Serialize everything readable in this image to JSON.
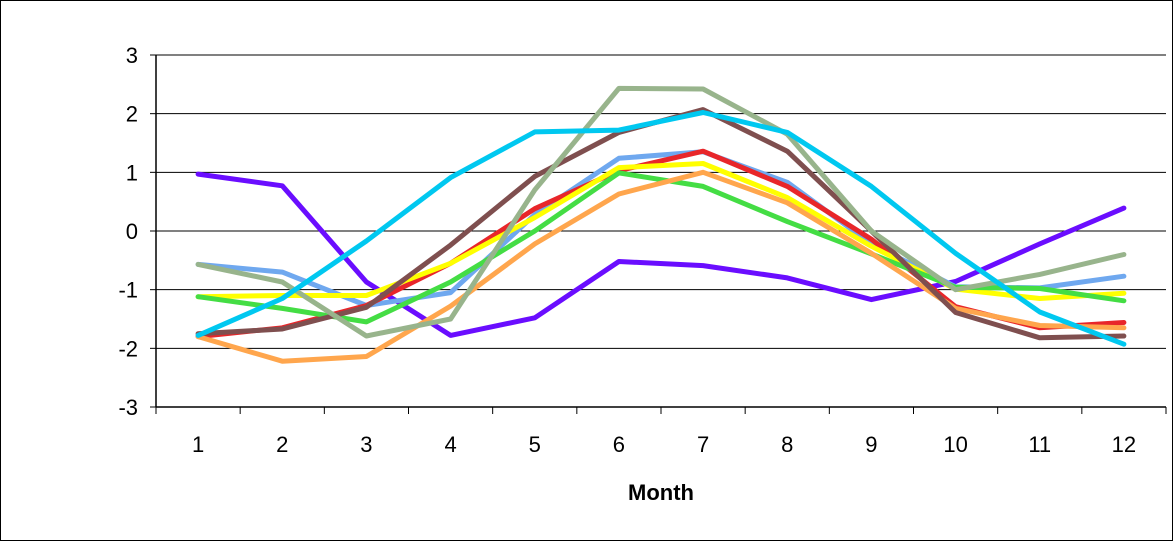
{
  "chart_data": {
    "type": "line",
    "title": "",
    "xlabel": "Month",
    "ylabel": "",
    "x": [
      1,
      2,
      3,
      4,
      5,
      6,
      7,
      8,
      9,
      10,
      11,
      12
    ],
    "x_tick_labels": [
      "1",
      "2",
      "3",
      "4",
      "5",
      "6",
      "7",
      "8",
      "9",
      "10",
      "11",
      "12"
    ],
    "ylim": [
      -3,
      3
    ],
    "y_ticks": [
      3,
      2,
      1,
      0,
      -1,
      -2,
      -3
    ],
    "y_tick_labels": [
      "3",
      "2",
      "1",
      "0",
      "-1",
      "-2",
      "-3"
    ],
    "grid": "horizontal major gridlines",
    "legend": "none",
    "series": [
      {
        "color": "#6a0dff",
        "values": [
          0.97,
          0.77,
          -0.87,
          -1.78,
          -1.48,
          -0.52,
          -0.59,
          -0.8,
          -1.17,
          -0.86,
          -0.22,
          0.39
        ]
      },
      {
        "color": "#6fa8ef",
        "values": [
          -0.57,
          -0.7,
          -1.27,
          -1.05,
          0.28,
          1.24,
          1.35,
          0.83,
          -0.22,
          -0.95,
          -0.97,
          -0.77
        ]
      },
      {
        "color": "#e8262a",
        "values": [
          -1.8,
          -1.65,
          -1.27,
          -0.55,
          0.38,
          1.03,
          1.36,
          0.76,
          -0.14,
          -1.29,
          -1.65,
          -1.56
        ]
      },
      {
        "color": "#ffff00",
        "values": [
          -1.12,
          -1.1,
          -1.1,
          -0.55,
          0.23,
          1.08,
          1.15,
          0.57,
          -0.26,
          -0.99,
          -1.15,
          -1.06
        ]
      },
      {
        "color": "#44dd44",
        "values": [
          -1.12,
          -1.32,
          -1.55,
          -0.87,
          0.0,
          0.99,
          0.76,
          0.16,
          -0.39,
          -0.96,
          -0.98,
          -1.19
        ]
      },
      {
        "color": "#ffa64d",
        "values": [
          -1.8,
          -2.22,
          -2.14,
          -1.28,
          -0.22,
          0.63,
          1.0,
          0.48,
          -0.38,
          -1.32,
          -1.61,
          -1.65
        ]
      },
      {
        "color": "#7f4f4f",
        "values": [
          -1.75,
          -1.67,
          -1.3,
          -0.24,
          0.93,
          1.68,
          2.07,
          1.36,
          0.0,
          -1.39,
          -1.82,
          -1.79
        ]
      },
      {
        "color": "#98b48c",
        "values": [
          -0.57,
          -0.87,
          -1.79,
          -1.5,
          0.7,
          2.43,
          2.42,
          1.65,
          0.0,
          -1.0,
          -0.74,
          -0.4
        ]
      },
      {
        "color": "#00c8f0",
        "values": [
          -1.78,
          -1.15,
          -0.17,
          0.91,
          1.69,
          1.72,
          2.02,
          1.68,
          0.76,
          -0.38,
          -1.38,
          -1.93
        ]
      }
    ]
  }
}
